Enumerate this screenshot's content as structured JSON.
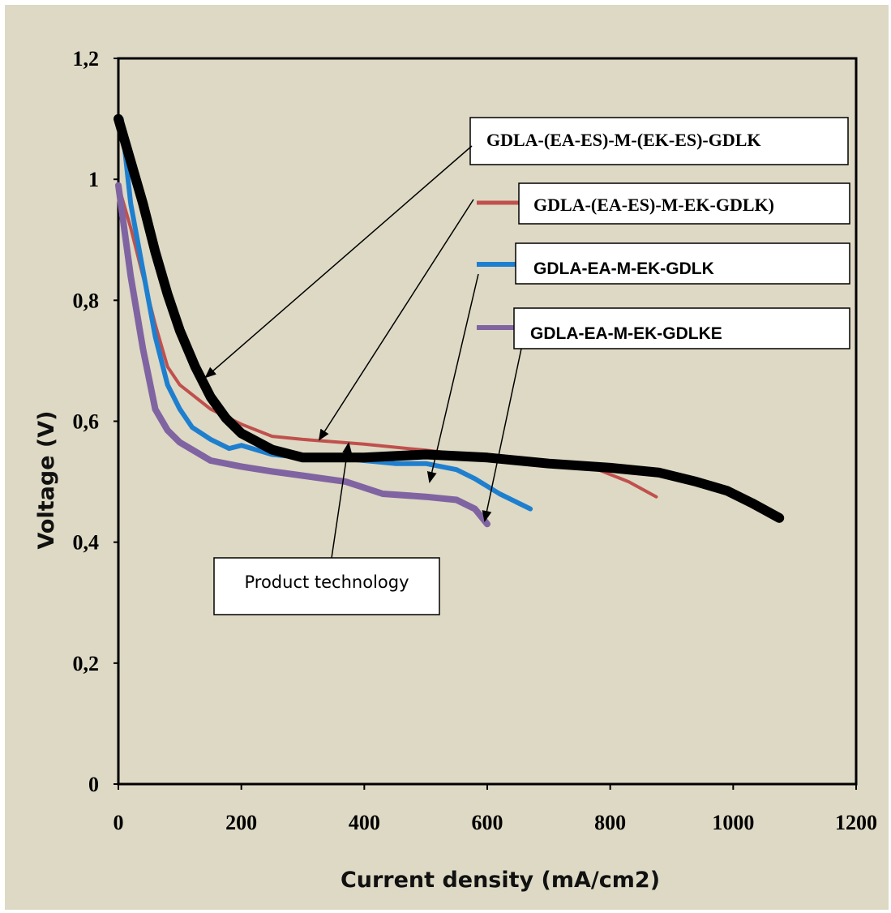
{
  "chart_data": {
    "type": "line",
    "xlabel": "Current density (mA/cm2)",
    "ylabel": "Voltage (V)",
    "xlim": [
      0,
      1200
    ],
    "ylim": [
      0,
      1.2
    ],
    "x_ticks": [
      "0",
      "200",
      "400",
      "600",
      "800",
      "1000",
      "1200"
    ],
    "y_ticks": [
      "0",
      "0,2",
      "0,4",
      "0,6",
      "0,8",
      "1",
      "1,2"
    ],
    "grid": false,
    "series": [
      {
        "name": "GDLA-(EA-ES)-M-EK-GDLK)",
        "color": "#c0504d",
        "x": [
          0,
          20,
          40,
          60,
          80,
          100,
          150,
          200,
          250,
          300,
          400,
          500,
          560,
          600,
          700,
          780,
          830,
          875
        ],
        "y": [
          0.99,
          0.92,
          0.84,
          0.76,
          0.69,
          0.66,
          0.62,
          0.595,
          0.575,
          0.57,
          0.562,
          0.552,
          0.545,
          0.535,
          0.53,
          0.52,
          0.5,
          0.475
        ]
      },
      {
        "name": "GDLA-EA-M-EK-GDLK",
        "color": "#1f7fcf",
        "x": [
          5,
          20,
          40,
          60,
          80,
          100,
          120,
          150,
          180,
          200,
          250,
          300,
          350,
          400,
          450,
          500,
          550,
          580,
          620,
          670
        ],
        "y": [
          1.1,
          0.96,
          0.85,
          0.74,
          0.66,
          0.62,
          0.59,
          0.57,
          0.555,
          0.56,
          0.545,
          0.54,
          0.54,
          0.535,
          0.53,
          0.53,
          0.52,
          0.505,
          0.48,
          0.455
        ]
      },
      {
        "name": "GDLA-EA-M-EK-GDLKE",
        "color": "#8064a2",
        "x": [
          0,
          20,
          40,
          60,
          80,
          100,
          150,
          200,
          250,
          300,
          370,
          400,
          430,
          500,
          550,
          580,
          600
        ],
        "y": [
          0.99,
          0.84,
          0.72,
          0.62,
          0.585,
          0.565,
          0.535,
          0.525,
          0.517,
          0.51,
          0.5,
          0.49,
          0.48,
          0.475,
          0.47,
          0.455,
          0.43
        ]
      },
      {
        "name": "GDLA-(EA-ES)-M-(EK-ES)-GDLK",
        "color": "#000000",
        "x": [
          0,
          20,
          40,
          60,
          80,
          100,
          125,
          150,
          175,
          200,
          250,
          300,
          400,
          500,
          600,
          700,
          800,
          880,
          940,
          990,
          1030,
          1075
        ],
        "y": [
          1.1,
          1.03,
          0.96,
          0.88,
          0.81,
          0.75,
          0.69,
          0.64,
          0.605,
          0.58,
          0.553,
          0.54,
          0.54,
          0.545,
          0.54,
          0.53,
          0.523,
          0.515,
          0.5,
          0.485,
          0.465,
          0.44
        ]
      }
    ],
    "annotations": [
      "GDLA-(EA-ES)-M-(EK-ES)-GDLK",
      "GDLA-(EA-ES)-M-EK-GDLK)",
      "GDLA-EA-M-EK-GDLK",
      "GDLA-EA-M-EK-GDLKE",
      "Product technology"
    ]
  }
}
